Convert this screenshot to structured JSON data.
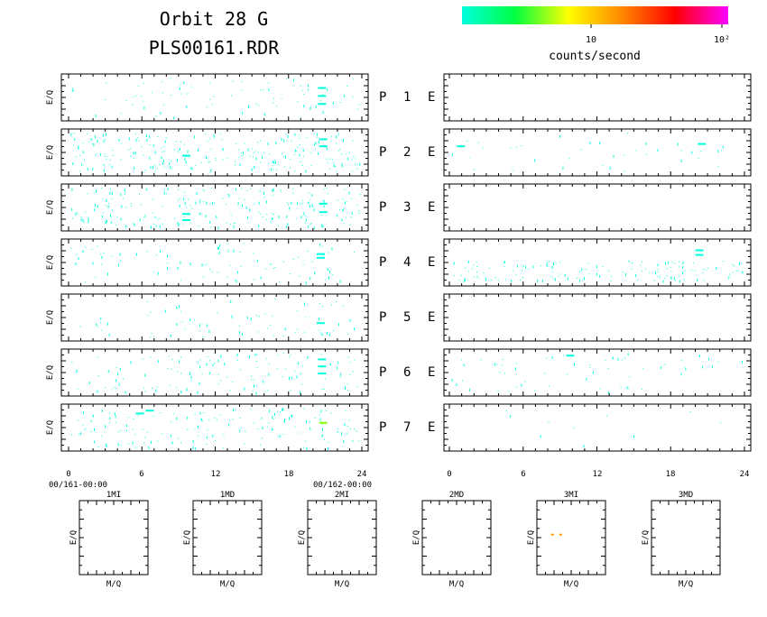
{
  "header": {
    "title_line1": "Orbit 28 G",
    "title_line2": "PLS00161.RDR"
  },
  "colorbar": {
    "stops": [
      "#00ffdd",
      "#00ff40",
      "#ffff00",
      "#ff8800",
      "#ff0000",
      "#ff00ff"
    ],
    "tick_labels": [
      "10",
      "10²"
    ],
    "label": "counts/second"
  },
  "panel_labels": {
    "ylabel": "E/Q",
    "left_prefix": "P",
    "right_suffix": "E"
  },
  "x_axis": {
    "ticks": [
      "0",
      "6",
      "12",
      "18",
      "24"
    ],
    "start_label": "00/161-00:00",
    "end_label": "00/162-00:00"
  },
  "chart_data": {
    "type": "heatmap",
    "x_range": [
      0,
      24
    ],
    "rows": [
      {
        "label": "1",
        "left_density": 0.25,
        "right_density": 0.0,
        "left_features": [
          {
            "x": 20.7,
            "y": 0.28,
            "color": "#00ffdd"
          },
          {
            "x": 20.7,
            "y": 0.45,
            "color": "#00ffdd"
          },
          {
            "x": 20.7,
            "y": 0.62,
            "color": "#00ffdd"
          }
        ],
        "right_features": []
      },
      {
        "label": "2",
        "left_density": 0.75,
        "right_density": 0.12,
        "left_features": [
          {
            "x": 9.6,
            "y": 0.55,
            "color": "#00ffdd"
          },
          {
            "x": 20.8,
            "y": 0.2,
            "color": "#00ffdd"
          },
          {
            "x": 20.8,
            "y": 0.35,
            "color": "#00ffdd"
          }
        ],
        "right_features": [
          {
            "x": 20.5,
            "y": 0.3,
            "color": "#00ffdd"
          },
          {
            "x": 0.9,
            "y": 0.35,
            "color": "#00ffdd"
          }
        ]
      },
      {
        "label": "3",
        "left_density": 0.7,
        "right_density": 0.0,
        "left_features": [
          {
            "x": 9.6,
            "y": 0.62,
            "color": "#00ffdd"
          },
          {
            "x": 9.6,
            "y": 0.75,
            "color": "#00ffdd"
          },
          {
            "x": 20.8,
            "y": 0.4,
            "color": "#00ffdd"
          },
          {
            "x": 20.8,
            "y": 0.58,
            "color": "#00ffdd"
          }
        ],
        "right_features": []
      },
      {
        "label": "4",
        "left_density": 0.28,
        "right_density": 0.45,
        "left_features": [
          {
            "x": 20.6,
            "y": 0.38,
            "color": "#00ffdd"
          },
          {
            "x": 20.6,
            "y": 0.3,
            "color": "#00ffdd"
          }
        ],
        "right_features": [
          {
            "x": 20.3,
            "y": 0.22,
            "color": "#00ffdd"
          },
          {
            "x": 20.3,
            "y": 0.32,
            "color": "#00ffdd"
          }
        ]
      },
      {
        "label": "5",
        "left_density": 0.22,
        "right_density": 0.0,
        "left_features": [
          {
            "x": 20.6,
            "y": 0.6,
            "color": "#00ffdd"
          }
        ],
        "right_features": []
      },
      {
        "label": "6",
        "left_density": 0.4,
        "right_density": 0.18,
        "left_features": [
          {
            "x": 20.7,
            "y": 0.2,
            "color": "#00ffdd"
          },
          {
            "x": 20.7,
            "y": 0.35,
            "color": "#00ffdd"
          },
          {
            "x": 20.7,
            "y": 0.5,
            "color": "#00ffdd"
          }
        ],
        "right_features": [
          {
            "x": 9.8,
            "y": 0.12,
            "color": "#00ffdd"
          }
        ]
      },
      {
        "label": "7",
        "left_density": 0.5,
        "right_density": 0.03,
        "left_features": [
          {
            "x": 20.8,
            "y": 0.38,
            "color": "#88ff00"
          },
          {
            "x": 5.8,
            "y": 0.18,
            "color": "#00ffdd"
          },
          {
            "x": 6.6,
            "y": 0.12,
            "color": "#00ffdd"
          }
        ],
        "right_features": []
      }
    ],
    "mass_panels": [
      {
        "label": "1MI",
        "points": []
      },
      {
        "label": "1MD",
        "points": []
      },
      {
        "label": "2MI",
        "points": []
      },
      {
        "label": "2MD",
        "points": []
      },
      {
        "label": "3MI",
        "points": [
          {
            "x": 0.22,
            "y": 0.46,
            "color": "#ff9900"
          },
          {
            "x": 0.34,
            "y": 0.46,
            "color": "#ff9900"
          }
        ]
      },
      {
        "label": "3MD",
        "points": []
      }
    ],
    "mass_xlabel": "M/Q",
    "mass_ylabel": "E/Q"
  }
}
